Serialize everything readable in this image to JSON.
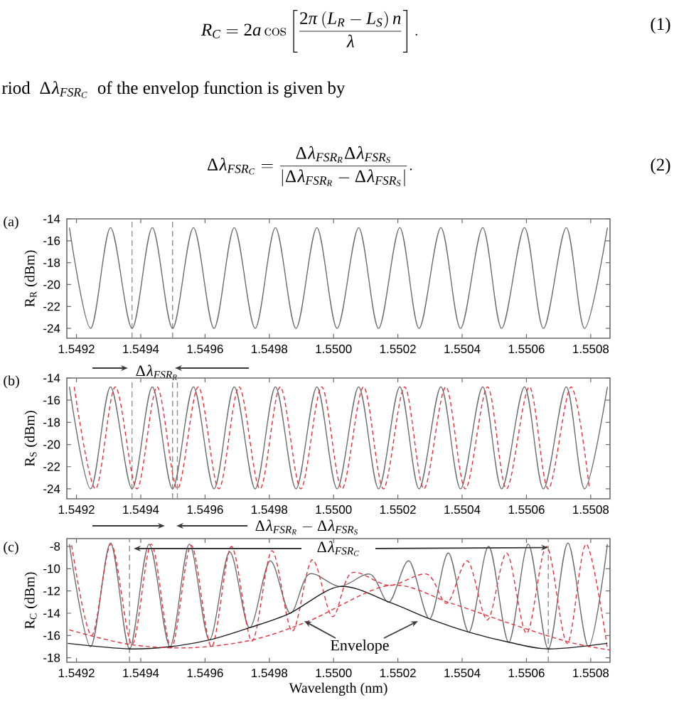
{
  "chart_data": [
    {
      "type": "other",
      "annotations": [
        "R_{C}=2a\\cos\\left[\\frac{2\\pi\\left(L_{R}-L_{S}\\right)n}{\\lambda}\\right].",
        "(1)",
        "riod",
        "\\Delta\\lambda_{FSR_{C}}",
        "of the envelop function is given by",
        "\\Delta\\lambda_{FSR_{C}}=\\frac{\\Delta\\lambda_{FSR_{R}}\\Delta\\lambda_{FSR_{S}}}{\\left|\\Delta\\lambda_{FSR_{R}}-\\Delta\\lambda_{FSR_{S}}\\right|}.",
        "(2)"
      ]
    },
    {
      "type": "line",
      "title": "(a)",
      "ylabel": "R$_{R}$ (dBm)",
      "xlim": [
        1.54917,
        1.55086
      ],
      "ylim": [
        -24.9,
        -14
      ],
      "xticks": [
        {
          "value": 1.5492,
          "label": "1.5492"
        },
        {
          "value": 1.5494,
          "label": "1.5494"
        },
        {
          "value": 1.5496,
          "label": "1.5496"
        },
        {
          "value": 1.5498,
          "label": "1.5498"
        },
        {
          "value": 1.55,
          "label": "1.5500"
        },
        {
          "value": 1.5502,
          "label": "1.5502"
        },
        {
          "value": 1.5504,
          "label": "1.5504"
        },
        {
          "value": 1.5506,
          "label": "1.5506"
        },
        {
          "value": 1.5508,
          "label": "1.5508"
        }
      ],
      "yticks": [
        -24,
        -22,
        -20,
        -18,
        -16,
        -14
      ],
      "series": [
        {
          "color": "#6e6e6e",
          "line_style": "solid",
          "x": [
            1.549178,
            1.549244,
            1.549306,
            1.549373,
            1.549436,
            1.549499,
            1.549564,
            1.549628,
            1.549691,
            1.549756,
            1.549819,
            1.549883,
            1.549948,
            1.550011,
            1.550078,
            1.55014,
            1.550206,
            1.550266,
            1.550334,
            1.550395,
            1.550464,
            1.550523,
            1.550594,
            1.550653,
            1.550724,
            1.550781,
            1.550852
          ],
          "values": [
            -14.8,
            -24,
            -14.8,
            -24,
            -14.8,
            -24,
            -14.8,
            -24,
            -14.8,
            -24,
            -14.8,
            -24,
            -14.8,
            -24,
            -14.8,
            -24,
            -14.8,
            -24,
            -14.8,
            -24,
            -14.8,
            -24,
            -14.8,
            -24,
            -14.8,
            -24,
            -14.8
          ]
        }
      ],
      "ref_lines": [
        {
          "axis": "x",
          "value": 1.549373,
          "color": "#8c8c8c",
          "line_style": "dashed"
        },
        {
          "axis": "x",
          "value": 1.549499,
          "color": "#8c8c8c",
          "line_style": "dashed"
        }
      ],
      "annotations": [
        "\\Delta\\lambda_{FSR_{R}}"
      ]
    },
    {
      "type": "line",
      "title": "(b)",
      "ylabel": "R$_{S}$ (dBm)",
      "xlim": [
        1.54917,
        1.55086
      ],
      "ylim": [
        -24.9,
        -14
      ],
      "xticks": [
        {
          "value": 1.5492,
          "label": "1.5492"
        },
        {
          "value": 1.5494,
          "label": "1.5494"
        },
        {
          "value": 1.5496,
          "label": "1.5496"
        },
        {
          "value": 1.5498,
          "label": "1.5498"
        },
        {
          "value": 1.55,
          "label": "1.5500"
        },
        {
          "value": 1.5502,
          "label": "1.5502"
        },
        {
          "value": 1.5504,
          "label": "1.5504"
        },
        {
          "value": 1.5506,
          "label": "1.5506"
        },
        {
          "value": 1.5508,
          "label": "1.5508"
        }
      ],
      "yticks": [
        -24,
        -22,
        -20,
        -18,
        -16,
        -14
      ],
      "series": [
        {
          "color": "#6e6e6e",
          "line_style": "solid",
          "x": [
            1.549178,
            1.549244,
            1.549306,
            1.549373,
            1.549436,
            1.549499,
            1.549564,
            1.549628,
            1.549691,
            1.549756,
            1.549819,
            1.549883,
            1.549948,
            1.550011,
            1.550078,
            1.55014,
            1.550206,
            1.550266,
            1.550334,
            1.550395,
            1.550464,
            1.550523,
            1.550594,
            1.550653,
            1.550724,
            1.550781,
            1.550852
          ],
          "values": [
            -14.8,
            -24,
            -14.8,
            -24,
            -14.8,
            -24,
            -14.8,
            -24,
            -14.8,
            -24,
            -14.8,
            -24,
            -14.8,
            -24,
            -14.8,
            -24,
            -14.8,
            -24,
            -14.8,
            -24,
            -14.8,
            -24,
            -14.8,
            -24,
            -14.8,
            -24,
            -14.8
          ]
        },
        {
          "color": "#e8303a",
          "line_style": "dashed",
          "x": [
            1.549193,
            1.549259,
            1.549321,
            1.549388,
            1.549451,
            1.549514,
            1.549579,
            1.549643,
            1.549706,
            1.549771,
            1.549834,
            1.549898,
            1.549963,
            1.550026,
            1.550093,
            1.550155,
            1.550221,
            1.550281,
            1.550349,
            1.55041,
            1.550479,
            1.550538,
            1.550609,
            1.550668,
            1.550739,
            1.550796
          ],
          "values": [
            -14.8,
            -24,
            -14.8,
            -24,
            -14.8,
            -24,
            -14.8,
            -24,
            -14.8,
            -24,
            -14.8,
            -24,
            -14.8,
            -24,
            -14.8,
            -24,
            -14.8,
            -24,
            -14.8,
            -24,
            -14.8,
            -24,
            -14.8,
            -24,
            -14.8,
            -24
          ]
        }
      ],
      "ref_lines": [
        {
          "axis": "x",
          "value": 1.549373,
          "color": "#8c8c8c",
          "line_style": "dashed"
        },
        {
          "axis": "x",
          "value": 1.549499,
          "color": "#8c8c8c",
          "line_style": "dashed"
        },
        {
          "axis": "x",
          "value": 1.549514,
          "color": "#8c8c8c",
          "line_style": "dashed"
        }
      ],
      "annotations": [
        "\\Delta\\lambda_{FSR_{R}}-\\Delta\\lambda_{FSR_{S}}"
      ]
    },
    {
      "type": "line",
      "title": "(c)",
      "ylabel": "R$_{C}$ (dBm)",
      "xlabel": "Wavelength (nm)",
      "xlim": [
        1.54917,
        1.55086
      ],
      "ylim": [
        -18.4,
        -7.3
      ],
      "xticks": [
        {
          "value": 1.5492,
          "label": "1.5492"
        },
        {
          "value": 1.5494,
          "label": "1.5494"
        },
        {
          "value": 1.5496,
          "label": "1.5496"
        },
        {
          "value": 1.5498,
          "label": "1.5498"
        },
        {
          "value": 1.55,
          "label": "1.5500"
        },
        {
          "value": 1.5502,
          "label": "1.5502"
        },
        {
          "value": 1.5504,
          "label": "1.5504"
        },
        {
          "value": 1.5506,
          "label": "1.5506"
        },
        {
          "value": 1.5508,
          "label": "1.5508"
        }
      ],
      "yticks": [
        -18,
        -16,
        -14,
        -12,
        -10,
        -8
      ],
      "series": [
        {
          "color": "#6e6e6e",
          "line_style": "solid",
          "x": [
            1.549178,
            1.549244,
            1.549306,
            1.549365,
            1.549426,
            1.549491,
            1.549551,
            1.549613,
            1.549676,
            1.549738,
            1.549802,
            1.549864,
            1.549923,
            1.550019,
            1.550114,
            1.550173,
            1.550235,
            1.550299,
            1.550358,
            1.550421,
            1.550483,
            1.550545,
            1.550606,
            1.550668,
            1.550729,
            1.550793,
            1.550852
          ],
          "values": [
            -7.8,
            -17.0,
            -7.7,
            -17.2,
            -7.8,
            -17.0,
            -7.8,
            -16.4,
            -8.5,
            -15.3,
            -9.3,
            -14.0,
            -10.5,
            -11.6,
            -10.5,
            -13.0,
            -9.3,
            -14.5,
            -8.6,
            -15.7,
            -8.0,
            -16.6,
            -7.8,
            -17.2,
            -7.7,
            -17.0,
            -7.8
          ]
        },
        {
          "color": "#e8303a",
          "line_style": "dashed",
          "x": [
            1.549185,
            1.549247,
            1.549308,
            1.549373,
            1.549433,
            1.549495,
            1.549557,
            1.54962,
            1.549682,
            1.549746,
            1.549808,
            1.549871,
            1.549933,
            1.549996,
            1.550055,
            1.550173,
            1.550291,
            1.550353,
            1.550417,
            1.550479,
            1.550539,
            1.550601,
            1.550663,
            1.550727,
            1.550786,
            1.550852
          ],
          "values": [
            -7.9,
            -16.0,
            -7.8,
            -16.8,
            -7.8,
            -17.1,
            -7.9,
            -17.0,
            -8.0,
            -16.5,
            -8.4,
            -15.6,
            -9.2,
            -14.3,
            -10.4,
            -11.5,
            -10.5,
            -13.1,
            -9.3,
            -14.6,
            -8.6,
            -15.8,
            -8.0,
            -16.7,
            -7.8,
            -17.2
          ]
        },
        {
          "color": "#1a1a1a",
          "line_style": "solid",
          "x": [
            1.549173,
            1.549365,
            1.549491,
            1.549613,
            1.549738,
            1.549864,
            1.550019,
            1.550173,
            1.550299,
            1.550421,
            1.550545,
            1.550668,
            1.550852
          ],
          "values": [
            -16.7,
            -17.2,
            -17.0,
            -16.4,
            -15.3,
            -14.0,
            -11.6,
            -13.0,
            -14.5,
            -15.7,
            -16.6,
            -17.2,
            -16.7
          ]
        },
        {
          "color": "#e8303a",
          "line_style": "dashed",
          "x": [
            1.549178,
            1.549365,
            1.549554,
            1.549746,
            1.549923,
            1.550173,
            1.550365,
            1.550557,
            1.550734,
            1.550859
          ],
          "values": [
            -15.5,
            -16.8,
            -17.1,
            -16.4,
            -14.7,
            -11.5,
            -13.1,
            -15.0,
            -16.6,
            -17.3
          ]
        }
      ],
      "ref_lines": [
        {
          "axis": "x",
          "value": 1.549365,
          "color": "#8c8c8c",
          "line_style": "dashed"
        },
        {
          "axis": "x",
          "value": 1.550668,
          "color": "#8c8c8c",
          "line_style": "dashed"
        }
      ],
      "annotations": [
        {
          "text": "\\Delta\\lambda_{FSR_{C}}",
          "x": 1.550668,
          "y": -8.1
        },
        "Envelope"
      ]
    }
  ]
}
